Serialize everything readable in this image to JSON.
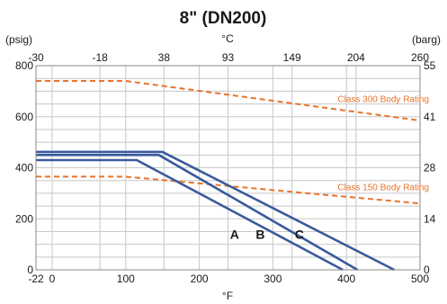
{
  "chart_data": {
    "type": "line",
    "title": "8\" (DN200)",
    "x_axis_bottom": {
      "unit_label": "°F",
      "ticks": [
        -22,
        0,
        100,
        200,
        300,
        400,
        500
      ],
      "range": [
        -22,
        500
      ]
    },
    "x_axis_top": {
      "unit_label": "°C",
      "ticks": [
        -30,
        -18,
        38,
        93,
        149,
        204,
        260
      ]
    },
    "y_axis_left": {
      "unit_label": "(psig)",
      "ticks": [
        0,
        200,
        400,
        600,
        800
      ],
      "range": [
        0,
        800
      ]
    },
    "y_axis_right": {
      "unit_label": "(barg)",
      "ticks": [
        0,
        14,
        28,
        41,
        55
      ]
    },
    "grid": true,
    "series": [
      {
        "name": "Class 300 Body Rating",
        "style": "dashed",
        "color": "#e8742a",
        "points": [
          [
            -22,
            740
          ],
          [
            100,
            740
          ],
          [
            500,
            585
          ]
        ]
      },
      {
        "name": "Class 150 Body Rating",
        "style": "dashed",
        "color": "#e8742a",
        "points": [
          [
            -22,
            365
          ],
          [
            100,
            365
          ],
          [
            500,
            260
          ]
        ]
      },
      {
        "name": "A",
        "style": "solid",
        "color": "#3a5a9c",
        "points": [
          [
            -22,
            430
          ],
          [
            115,
            430
          ],
          [
            395,
            0
          ]
        ]
      },
      {
        "name": "B",
        "style": "solid",
        "color": "#3a5a9c",
        "points": [
          [
            -22,
            450
          ],
          [
            145,
            450
          ],
          [
            415,
            0
          ]
        ]
      },
      {
        "name": "C",
        "style": "solid",
        "color": "#3a5a9c",
        "points": [
          [
            -22,
            462
          ],
          [
            150,
            462
          ],
          [
            465,
            0
          ]
        ]
      }
    ],
    "labels": [
      {
        "text": "A",
        "x": 248,
        "y": 140
      },
      {
        "text": "B",
        "x": 283,
        "y": 140
      },
      {
        "text": "C",
        "x": 336,
        "y": 140
      },
      {
        "text": "Class 300 Body Rating",
        "x": 388,
        "y": 658
      },
      {
        "text": "Class 150 Body Rating",
        "x": 388,
        "y": 312
      }
    ],
    "colors": {
      "grid": "#c8c8c8",
      "curve": "#3a5a9c",
      "rating": "#e8742a",
      "frame": "#888888"
    }
  }
}
